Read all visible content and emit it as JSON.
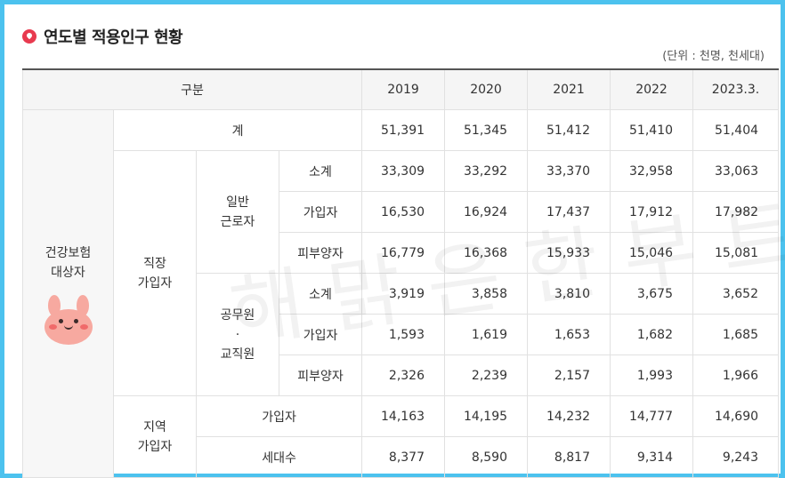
{
  "title": "연도별 적용인구 현황",
  "unit": "(단위 : 천명, 천세대)",
  "header": {
    "category": "구분",
    "years": [
      "2019",
      "2020",
      "2021",
      "2022",
      "2023.3."
    ]
  },
  "row_group": {
    "label_line1": "건강보험",
    "label_line2": "대상자"
  },
  "rows": {
    "total": {
      "label": "계",
      "values": [
        "51,391",
        "51,345",
        "51,412",
        "51,410",
        "51,404"
      ]
    },
    "workplace": {
      "label_line1": "직장",
      "label_line2": "가입자",
      "general": {
        "label_line1": "일반",
        "label_line2": "근로자",
        "subtotal": {
          "label": "소계",
          "values": [
            "33,309",
            "33,292",
            "33,370",
            "32,958",
            "33,063"
          ]
        },
        "subscriber": {
          "label": "가입자",
          "values": [
            "16,530",
            "16,924",
            "17,437",
            "17,912",
            "17,982"
          ]
        },
        "dependent": {
          "label": "피부양자",
          "values": [
            "16,779",
            "16,368",
            "15,933",
            "15,046",
            "15,081"
          ]
        }
      },
      "public": {
        "label_line1": "공무원",
        "label_line2": "·",
        "label_line3": "교직원",
        "subtotal": {
          "label": "소계",
          "values": [
            "3,919",
            "3,858",
            "3,810",
            "3,675",
            "3,652"
          ]
        },
        "subscriber": {
          "label": "가입자",
          "values": [
            "1,593",
            "1,619",
            "1,653",
            "1,682",
            "1,685"
          ]
        },
        "dependent": {
          "label": "피부양자",
          "values": [
            "2,326",
            "2,239",
            "2,157",
            "1,993",
            "1,966"
          ]
        }
      }
    },
    "regional": {
      "label_line1": "지역",
      "label_line2": "가입자",
      "subscriber": {
        "label": "가입자",
        "values": [
          "14,163",
          "14,195",
          "14,232",
          "14,777",
          "14,690"
        ]
      },
      "households": {
        "label": "세대수",
        "values": [
          "8,377",
          "8,590",
          "8,817",
          "9,314",
          "9,243"
        ]
      }
    }
  },
  "watermark": "해 맑 은 한 부 트",
  "colors": {
    "frame": "#4cc2ee",
    "icon": "#e83a4f",
    "header_bg": "#f5f5f5"
  },
  "icons": {
    "title": "red-speech-bubble-icon",
    "mascot": "pink-bunny-mascot"
  }
}
